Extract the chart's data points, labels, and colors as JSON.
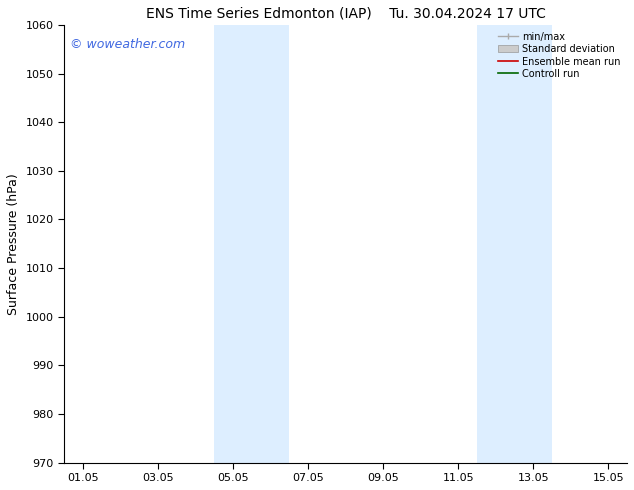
{
  "title_left": "ENS Time Series Edmonton (IAP)",
  "title_right": "Tu. 30.04.2024 17 UTC",
  "ylabel": "Surface Pressure (hPa)",
  "ylim": [
    970,
    1060
  ],
  "yticks": [
    970,
    980,
    990,
    1000,
    1010,
    1020,
    1030,
    1040,
    1050,
    1060
  ],
  "xtick_labels": [
    "01.05",
    "03.05",
    "05.05",
    "07.05",
    "09.05",
    "11.05",
    "13.05",
    "15.05"
  ],
  "xtick_positions": [
    0,
    2,
    4,
    6,
    8,
    10,
    12,
    14
  ],
  "xlim": [
    -0.5,
    14.5
  ],
  "background_color": "#ffffff",
  "plot_bg_color": "#ffffff",
  "watermark_text": "© woweather.com",
  "watermark_color": "#4169E1",
  "shaded_regions": [
    {
      "x_start": 3.5,
      "x_end": 5.5,
      "color": "#ddeeff"
    },
    {
      "x_start": 10.5,
      "x_end": 12.5,
      "color": "#ddeeff"
    }
  ],
  "legend_labels": [
    "min/max",
    "Standard deviation",
    "Ensemble mean run",
    "Controll run"
  ],
  "legend_colors": [
    "#aaaaaa",
    "#cccccc",
    "#cc0000",
    "#006600"
  ],
  "grid_on": false,
  "title_fontsize": 10,
  "axis_label_fontsize": 9,
  "tick_fontsize": 8,
  "watermark_fontsize": 9,
  "legend_fontsize": 7
}
